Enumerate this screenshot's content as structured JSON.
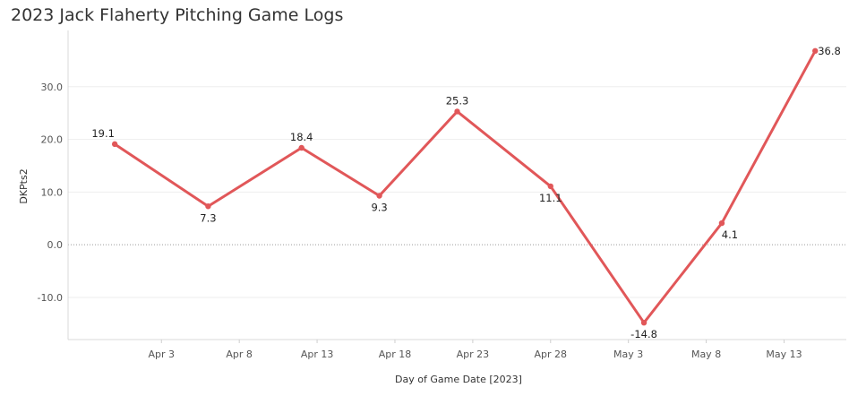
{
  "title": "2023 Jack Flaherty Pitching Game Logs",
  "chart_data": {
    "type": "line",
    "title": "2023 Jack Flaherty Pitching Game Logs",
    "xlabel": "Day of Game Date [2023]",
    "ylabel": "DKPts2",
    "x": [
      "2023-03-31",
      "2023-04-06",
      "2023-04-12",
      "2023-04-17",
      "2023-04-22",
      "2023-04-28",
      "2023-05-04",
      "2023-05-09",
      "2023-05-15"
    ],
    "series": [
      {
        "values": [
          19.1,
          7.3,
          18.4,
          9.3,
          25.3,
          11.1,
          -14.8,
          4.1,
          36.8
        ]
      }
    ],
    "data_labels": [
      "19.1",
      "7.3",
      "18.4",
      "9.3",
      "25.3",
      "11.1",
      "-14.8",
      "4.1",
      "36.8"
    ],
    "x_ticks": [
      {
        "date": "2023-04-03",
        "label": "Apr 3"
      },
      {
        "date": "2023-04-08",
        "label": "Apr 8"
      },
      {
        "date": "2023-04-13",
        "label": "Apr 13"
      },
      {
        "date": "2023-04-18",
        "label": "Apr 18"
      },
      {
        "date": "2023-04-23",
        "label": "Apr 23"
      },
      {
        "date": "2023-04-28",
        "label": "Apr 28"
      },
      {
        "date": "2023-05-03",
        "label": "May 3"
      },
      {
        "date": "2023-05-08",
        "label": "May 8"
      },
      {
        "date": "2023-05-13",
        "label": "May 13"
      }
    ],
    "y_ticks": [
      {
        "value": 30,
        "label": "30.0"
      },
      {
        "value": 20,
        "label": "20.0"
      },
      {
        "value": 10,
        "label": "10.0"
      },
      {
        "value": 0,
        "label": "0.0"
      },
      {
        "value": -10,
        "label": "-10.0"
      }
    ],
    "ylim": [
      -18,
      40
    ],
    "xlim": [
      "2023-03-28",
      "2023-05-17"
    ],
    "grid": true,
    "line_color": "#e15759"
  }
}
